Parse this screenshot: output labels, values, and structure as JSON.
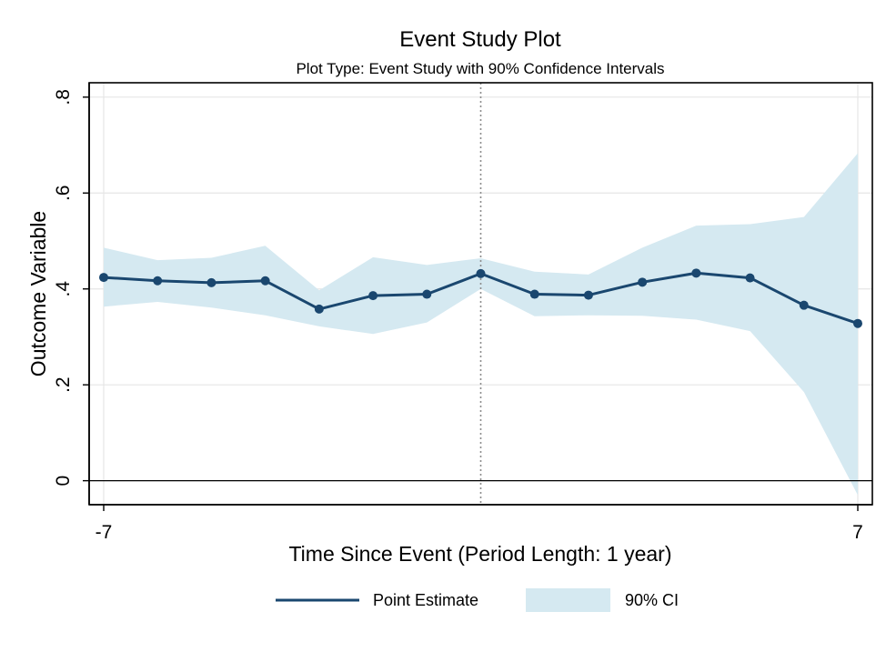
{
  "chart_data": {
    "type": "line",
    "title": "Event Study Plot",
    "subtitle": "Plot Type: Event Study with 90% Confidence Intervals",
    "xlabel": "Time Since Event (Period Length: 1 year)",
    "ylabel": "Outcome Variable",
    "xlim": [
      -7,
      7
    ],
    "ylim": [
      -0.05,
      0.83
    ],
    "xticks": [
      -7,
      7
    ],
    "xtick_labels": [
      "-7",
      "7"
    ],
    "yticks": [
      0,
      0.2,
      0.4,
      0.6,
      0.8
    ],
    "ytick_labels": [
      "0",
      ".2",
      ".4",
      ".6",
      ".8"
    ],
    "grid": true,
    "event_line_x": 0,
    "zero_line_y": 0,
    "legend_position": "bottom",
    "x": [
      -7,
      -6,
      -5,
      -4,
      -3,
      -2,
      -1,
      0,
      1,
      2,
      3,
      4,
      5,
      6,
      7
    ],
    "series": [
      {
        "name": "Point Estimate",
        "color": "#1a476f",
        "values": [
          0.424,
          0.417,
          0.413,
          0.417,
          0.358,
          0.386,
          0.389,
          0.432,
          0.389,
          0.387,
          0.414,
          0.433,
          0.423,
          0.366,
          0.328
        ]
      },
      {
        "name": "90% CI",
        "color": "#d5e9f1",
        "lower": [
          0.363,
          0.373,
          0.361,
          0.345,
          0.322,
          0.306,
          0.33,
          0.4,
          0.343,
          0.345,
          0.344,
          0.336,
          0.312,
          0.185,
          -0.03
        ],
        "upper": [
          0.486,
          0.46,
          0.465,
          0.49,
          0.397,
          0.466,
          0.45,
          0.464,
          0.436,
          0.43,
          0.486,
          0.532,
          0.535,
          0.55,
          0.683
        ]
      }
    ]
  }
}
